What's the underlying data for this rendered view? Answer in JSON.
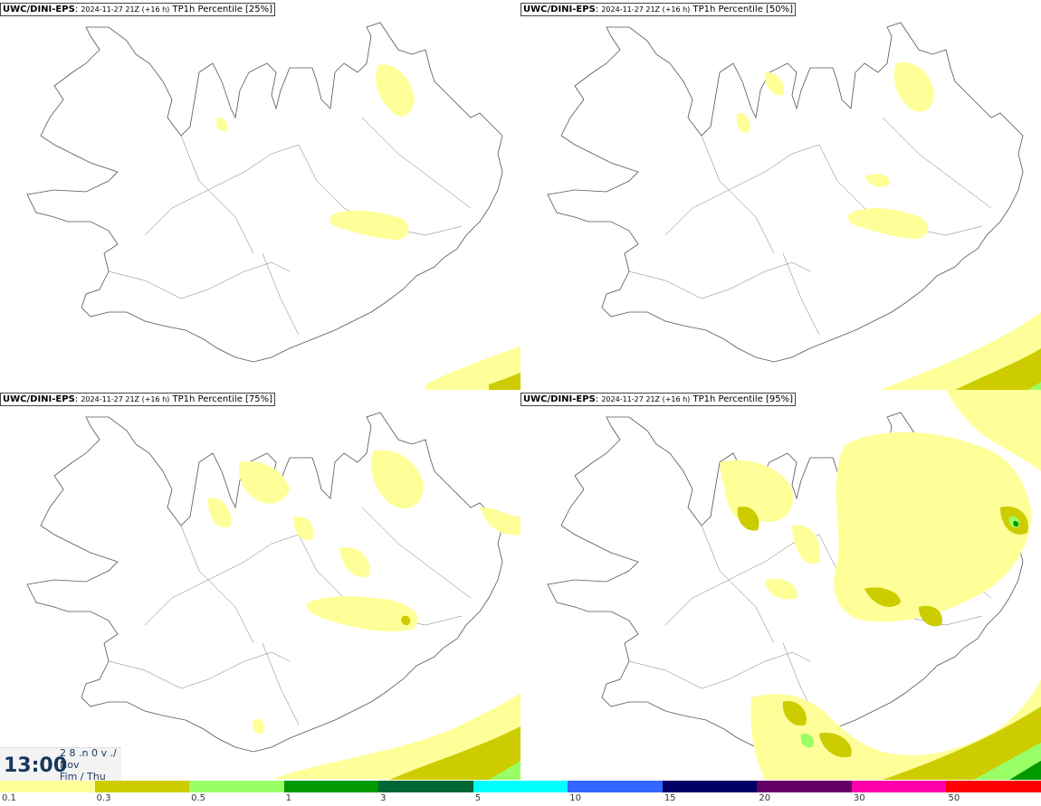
{
  "panels": [
    {
      "model": "UWC/DINI-EPS",
      "run": "2024-11-27 21Z (+16 h)",
      "field": "TP1h Percentile [25%]"
    },
    {
      "model": "UWC/DINI-EPS",
      "run": "2024-11-27 21Z (+16 h)",
      "field": "TP1h Percentile [50%]"
    },
    {
      "model": "UWC/DINI-EPS",
      "run": "2024-11-27 21Z (+16 h)",
      "field": "TP1h Percentile [75%]"
    },
    {
      "model": "UWC/DINI-EPS",
      "run": "2024-11-27 21Z (+16 h)",
      "field": "TP1h Percentile [95%]"
    }
  ],
  "valid_time": {
    "hour": "13:00",
    "date_line": "2 8 .n 0 v ./",
    "month": "Nov",
    "weekday": "Fim / Thu"
  },
  "legend": {
    "labels": [
      "0.1",
      "0.3",
      "0.5",
      "1",
      "3",
      "5",
      "10",
      "15",
      "20",
      "30",
      "50"
    ],
    "colors": [
      "#ffff99",
      "#cccc00",
      "#99ff66",
      "#009900",
      "#006633",
      "#00ffff",
      "#3366ff",
      "#000066",
      "#660066",
      "#ff00aa",
      "#ff0000"
    ]
  },
  "colors": {
    "light_yellow": "#ffff99",
    "olive": "#cccc00",
    "light_green": "#99ff66",
    "green": "#009900"
  }
}
